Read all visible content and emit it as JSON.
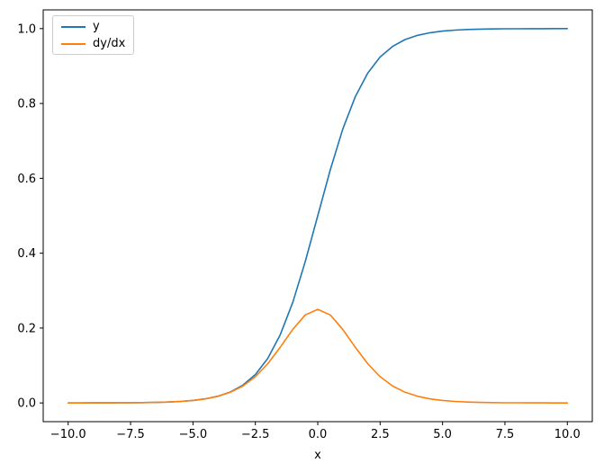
{
  "chart_data": {
    "type": "line",
    "title": "",
    "xlabel": "x",
    "ylabel": "",
    "grid": false,
    "xlim": [
      -11,
      11
    ],
    "ylim": [
      -0.05,
      1.05
    ],
    "xticks": {
      "values": [
        -10,
        -7.5,
        -5,
        -2.5,
        0,
        2.5,
        5,
        7.5,
        10
      ],
      "labels": [
        "−10.0",
        "−7.5",
        "−5.0",
        "−2.5",
        "0.0",
        "2.5",
        "5.0",
        "7.5",
        "10.0"
      ]
    },
    "yticks": {
      "values": [
        0,
        0.2,
        0.4,
        0.6,
        0.8,
        1.0
      ],
      "labels": [
        "0.0",
        "0.2",
        "0.4",
        "0.6",
        "0.8",
        "1.0"
      ]
    },
    "legend": {
      "position": "upper-left",
      "entries": [
        "y",
        "dy/dx"
      ]
    },
    "x": [
      -10,
      -9.5,
      -9,
      -8.5,
      -8,
      -7.5,
      -7,
      -6.5,
      -6,
      -5.5,
      -5,
      -4.5,
      -4,
      -3.5,
      -3,
      -2.5,
      -2,
      -1.5,
      -1,
      -0.5,
      0,
      0.5,
      1,
      1.5,
      2,
      2.5,
      3,
      3.5,
      4,
      4.5,
      5,
      5.5,
      6,
      6.5,
      7,
      7.5,
      8,
      8.5,
      9,
      9.5,
      10
    ],
    "series": [
      {
        "name": "y",
        "color": "#1f77b4",
        "values": [
          5e-05,
          7e-05,
          0.00012,
          0.0002,
          0.00034,
          0.00055,
          0.00091,
          0.0015,
          0.00247,
          0.00407,
          0.00669,
          0.01099,
          0.01799,
          0.02931,
          0.04743,
          0.07586,
          0.1192,
          0.18243,
          0.26894,
          0.37754,
          0.5,
          0.62246,
          0.73106,
          0.81757,
          0.8808,
          0.92414,
          0.95257,
          0.97069,
          0.98201,
          0.98901,
          0.99331,
          0.99593,
          0.99753,
          0.9985,
          0.99909,
          0.99945,
          0.99966,
          0.9998,
          0.99988,
          0.99993,
          0.99995
        ]
      },
      {
        "name": "dy/dx",
        "color": "#ff7f0e",
        "values": [
          5e-05,
          7e-05,
          0.00012,
          0.0002,
          0.00033,
          0.00055,
          0.00091,
          0.0015,
          0.00246,
          0.00405,
          0.00665,
          0.01087,
          0.01766,
          0.02845,
          0.04518,
          0.0701,
          0.10499,
          0.14914,
          0.19661,
          0.235,
          0.25,
          0.235,
          0.19661,
          0.14914,
          0.10499,
          0.0701,
          0.04518,
          0.02845,
          0.01766,
          0.01087,
          0.00665,
          0.00405,
          0.00246,
          0.0015,
          0.00091,
          0.00055,
          0.00033,
          0.0002,
          0.00012,
          7e-05,
          5e-05
        ]
      }
    ]
  }
}
